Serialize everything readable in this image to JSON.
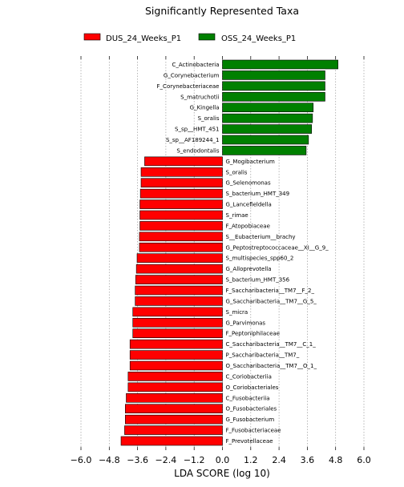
{
  "chart_data": {
    "type": "bar",
    "orientation": "horizontal",
    "title": "Significantly Represented Taxa",
    "xlabel": "LDA SCORE (log 10)",
    "ylabel": "",
    "xlim": [
      -6.0,
      6.0
    ],
    "xticks": [
      -6.0,
      -4.8,
      -3.6,
      -2.4,
      -1.2,
      0.0,
      1.2,
      2.4,
      3.6,
      4.8,
      6.0
    ],
    "xtick_labels": [
      "−6.0",
      "−4.8",
      "−3.6",
      "−2.4",
      "−1.2",
      "0.0",
      "1.2",
      "2.4",
      "3.6",
      "4.8",
      "6.0"
    ],
    "grid": "vertical dotted",
    "legend_position": "top",
    "series": [
      {
        "name": "DUS_24_Weeks_P1",
        "color": "#ff0000"
      },
      {
        "name": "OSS_24_Weeks_P1",
        "color": "#008000"
      }
    ],
    "bars": [
      {
        "label": "C_Actinobacteria",
        "value": 4.9,
        "group": "OSS_24_Weeks_P1"
      },
      {
        "label": "G_Corynebacterium",
        "value": 4.35,
        "group": "OSS_24_Weeks_P1"
      },
      {
        "label": "F_Corynebacteriaceae",
        "value": 4.35,
        "group": "OSS_24_Weeks_P1"
      },
      {
        "label": "S_matruchotii",
        "value": 4.35,
        "group": "OSS_24_Weeks_P1"
      },
      {
        "label": "G_Kingella",
        "value": 3.85,
        "group": "OSS_24_Weeks_P1"
      },
      {
        "label": "S_oralis",
        "value": 3.82,
        "group": "OSS_24_Weeks_P1"
      },
      {
        "label": "S_sp__HMT_451",
        "value": 3.78,
        "group": "OSS_24_Weeks_P1"
      },
      {
        "label": "S_sp__AF189244_1",
        "value": 3.65,
        "group": "OSS_24_Weeks_P1"
      },
      {
        "label": "S_endodontalis",
        "value": 3.55,
        "group": "OSS_24_Weeks_P1"
      },
      {
        "label": "G_Mogibacterium",
        "value": -3.3,
        "group": "DUS_24_Weeks_P1"
      },
      {
        "label": "S_oralis",
        "value": -3.45,
        "group": "DUS_24_Weeks_P1"
      },
      {
        "label": "G_Selenomonas",
        "value": -3.45,
        "group": "DUS_24_Weeks_P1"
      },
      {
        "label": "S_bacterium_HMT_349",
        "value": -3.48,
        "group": "DUS_24_Weeks_P1"
      },
      {
        "label": "G_Lancefieldella",
        "value": -3.5,
        "group": "DUS_24_Weeks_P1"
      },
      {
        "label": "S_rimae",
        "value": -3.5,
        "group": "DUS_24_Weeks_P1"
      },
      {
        "label": "F_Atopobiaceae",
        "value": -3.5,
        "group": "DUS_24_Weeks_P1"
      },
      {
        "label": "S__Eubacterium__brachy",
        "value": -3.52,
        "group": "DUS_24_Weeks_P1"
      },
      {
        "label": "G_Peptostreptococcaceae__XI__G_9_",
        "value": -3.52,
        "group": "DUS_24_Weeks_P1"
      },
      {
        "label": "S_multispecies_spp60_2",
        "value": -3.62,
        "group": "DUS_24_Weeks_P1"
      },
      {
        "label": "G_Alloprevotella",
        "value": -3.65,
        "group": "DUS_24_Weeks_P1"
      },
      {
        "label": "S_bacterium_HMT_356",
        "value": -3.68,
        "group": "DUS_24_Weeks_P1"
      },
      {
        "label": "F_Saccharibacteria__TM7__F_2_",
        "value": -3.7,
        "group": "DUS_24_Weeks_P1"
      },
      {
        "label": "G_Saccharibacteria__TM7__G_5_",
        "value": -3.7,
        "group": "DUS_24_Weeks_P1"
      },
      {
        "label": "S_micra",
        "value": -3.8,
        "group": "DUS_24_Weeks_P1"
      },
      {
        "label": "G_Parvimonas",
        "value": -3.8,
        "group": "DUS_24_Weeks_P1"
      },
      {
        "label": "F_Peptoniphilaceae",
        "value": -3.8,
        "group": "DUS_24_Weeks_P1"
      },
      {
        "label": "C_Saccharibacteria__TM7__C_1_",
        "value": -3.92,
        "group": "DUS_24_Weeks_P1"
      },
      {
        "label": "P_Saccharibacteria__TM7_",
        "value": -3.92,
        "group": "DUS_24_Weeks_P1"
      },
      {
        "label": "O_Saccharibacteria__TM7__O_1_",
        "value": -3.92,
        "group": "DUS_24_Weeks_P1"
      },
      {
        "label": "C_Coriobacteriia",
        "value": -4.0,
        "group": "DUS_24_Weeks_P1"
      },
      {
        "label": "O_Coriobacteriales",
        "value": -4.0,
        "group": "DUS_24_Weeks_P1"
      },
      {
        "label": "C_Fusobacteriia",
        "value": -4.08,
        "group": "DUS_24_Weeks_P1"
      },
      {
        "label": "O_Fusobacteriales",
        "value": -4.12,
        "group": "DUS_24_Weeks_P1"
      },
      {
        "label": "G_Fusobacterium",
        "value": -4.12,
        "group": "DUS_24_Weeks_P1"
      },
      {
        "label": "F_Fusobacteriaceae",
        "value": -4.15,
        "group": "DUS_24_Weeks_P1"
      },
      {
        "label": "F_Prevotellaceae",
        "value": -4.3,
        "group": "DUS_24_Weeks_P1"
      }
    ]
  }
}
